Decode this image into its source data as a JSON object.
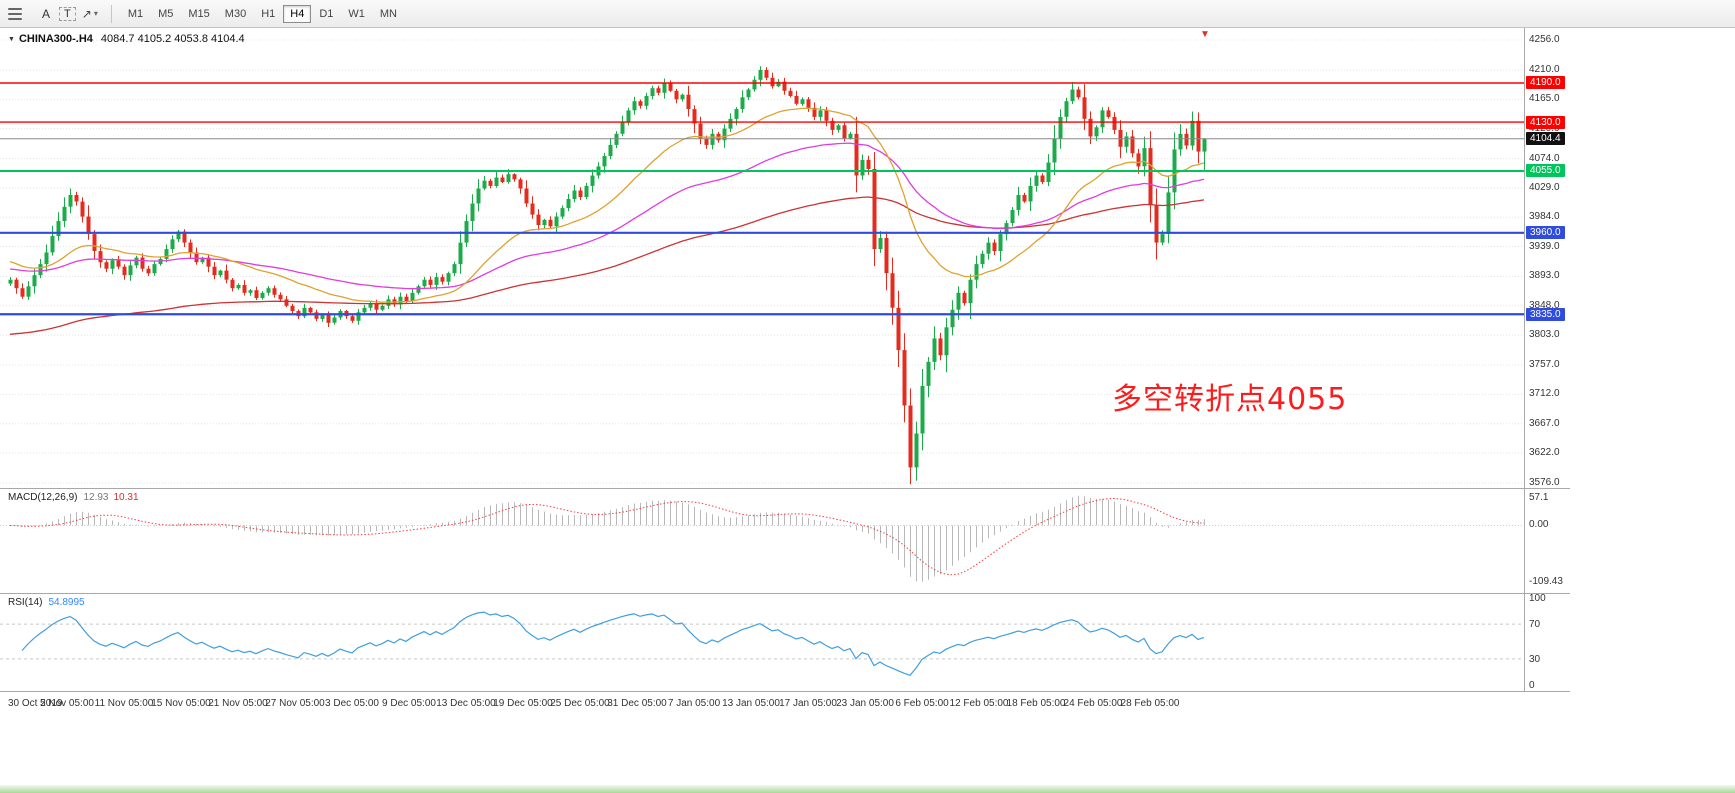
{
  "colors": {
    "bull": "#1cab4a",
    "bear": "#e52b1d",
    "grid": "#e3e3e3",
    "macd_hist": "#b8b8b8",
    "macd_signal": "#fb3b3b",
    "rsi_line": "#3f9fdf",
    "current_price_bg": "#111111",
    "current_price_line": "#888888"
  },
  "toolbar": {
    "tools": [
      {
        "label": "A"
      },
      {
        "label": "T"
      }
    ],
    "icons": {
      "cursor": "↗",
      "caret": "▾"
    },
    "timeframes": [
      "M1",
      "M5",
      "M15",
      "M30",
      "H1",
      "H4",
      "D1",
      "W1",
      "MN"
    ],
    "active_timeframe": "H4"
  },
  "chart": {
    "dropdown_glyph": "▼",
    "symbol_title": "CHINA300-.H4",
    "ohlc_text": "4084.7 4105.2 4053.8 4104.4",
    "shift_marker_glyph": "▼"
  },
  "annotation": {
    "text": "多空转折点4055",
    "color": "#fb1d1d"
  },
  "chart_data": {
    "type": "candlestick",
    "symbol": "CHINA300-",
    "timeframe": "H4",
    "current_ohlc": {
      "open": 4084.7,
      "high": 4105.2,
      "low": 4053.8,
      "close": 4104.4
    },
    "closes": [
      3888,
      3875,
      3862,
      3878,
      3895,
      3912,
      3930,
      3955,
      3978,
      4000,
      4018,
      4008,
      3985,
      3958,
      3932,
      3915,
      3905,
      3918,
      3908,
      3895,
      3910,
      3922,
      3905,
      3898,
      3912,
      3920,
      3935,
      3950,
      3962,
      3945,
      3930,
      3915,
      3922,
      3908,
      3895,
      3902,
      3888,
      3875,
      3880,
      3868,
      3872,
      3860,
      3868,
      3875,
      3865,
      3858,
      3848,
      3840,
      3832,
      3845,
      3838,
      3828,
      3835,
      3822,
      3830,
      3840,
      3832,
      3825,
      3838,
      3845,
      3852,
      3842,
      3848,
      3858,
      3850,
      3862,
      3855,
      3868,
      3878,
      3888,
      3880,
      3892,
      3885,
      3898,
      3912,
      3945,
      3978,
      4005,
      4028,
      4040,
      4032,
      4045,
      4038,
      4050,
      4042,
      4028,
      4005,
      3988,
      3972,
      3980,
      3970,
      3985,
      3998,
      4012,
      4025,
      4015,
      4032,
      4048,
      4062,
      4078,
      4095,
      4112,
      4130,
      4148,
      4162,
      4155,
      4170,
      4182,
      4175,
      4190,
      4178,
      4165,
      4172,
      4150,
      4128,
      4105,
      4095,
      4112,
      4102,
      4120,
      4135,
      4150,
      4168,
      4180,
      4195,
      4210,
      4198,
      4185,
      4192,
      4178,
      4170,
      4158,
      4165,
      4152,
      4138,
      4148,
      4132,
      4118,
      4125,
      4105,
      4112,
      4048,
      4072,
      4058,
      3935,
      3952,
      3898,
      3845,
      3780,
      3695,
      3600,
      3652,
      3725,
      3762,
      3798,
      3772,
      3815,
      3842,
      3868,
      3852,
      3888,
      3912,
      3928,
      3945,
      3932,
      3958,
      3975,
      3995,
      4018,
      4008,
      4032,
      4048,
      4038,
      4068,
      4105,
      4138,
      4162,
      4180,
      4168,
      4135,
      4108,
      4122,
      4148,
      4138,
      4118,
      4092,
      4108,
      4082,
      4062,
      4090,
      4002,
      3945,
      3958,
      4022,
      4088,
      4112,
      4094,
      4132,
      4084.7,
      4104.4
    ],
    "moving_averages": [
      {
        "name": "ma-slow",
        "period": 140,
        "seed": 3803,
        "color": "#cc3333"
      },
      {
        "name": "ma-mid",
        "period": 62,
        "seed": 3905,
        "color": "#e03ce0"
      },
      {
        "name": "ma-fast",
        "period": 26,
        "seed": 3918,
        "color": "#dfa22e"
      }
    ],
    "levels": [
      {
        "price": 4190.0,
        "color": "#fe0000",
        "width": 1.4,
        "type": "resistance"
      },
      {
        "price": 4130.0,
        "color": "#fe0000",
        "width": 1.4,
        "type": "resistance"
      },
      {
        "price": 4055.0,
        "color": "#00c45c",
        "width": 2.0,
        "type": "pivot"
      },
      {
        "price": 3960.0,
        "color": "#2f4cdd",
        "width": 2.2,
        "type": "support"
      },
      {
        "price": 3835.0,
        "color": "#2f4cdd",
        "width": 2.2,
        "type": "support"
      }
    ],
    "price_ticks": [
      4256.0,
      4210.0,
      4165.0,
      4120.0,
      4074.0,
      4029.0,
      3984.0,
      3939.0,
      3893.0,
      3848.0,
      3803.0,
      3757.0,
      3712.0,
      3667.0,
      3622.0,
      3576.0
    ],
    "time_labels": [
      "30 Oct 2019",
      "5 Nov 05:00",
      "11 Nov 05:00",
      "15 Nov 05:00",
      "21 Nov 05:00",
      "27 Nov 05:00",
      "3 Dec 05:00",
      "9 Dec 05:00",
      "13 Dec 05:00",
      "19 Dec 05:00",
      "25 Dec 05:00",
      "31 Dec 05:00",
      "7 Jan 05:00",
      "13 Jan 05:00",
      "17 Jan 05:00",
      "23 Jan 05:00",
      "6 Feb 05:00",
      "12 Feb 05:00",
      "18 Feb 05:00",
      "24 Feb 05:00",
      "28 Feb 05:00"
    ],
    "macd": {
      "label": "MACD(12,26,9)",
      "value_macd": "12.93",
      "value_signal": "10.31",
      "axis": [
        "57.1",
        "0.00",
        "-109.43"
      ],
      "params": [
        12,
        26,
        9
      ]
    },
    "rsi": {
      "label": "RSI(14)",
      "value": "54.8995",
      "axis": [
        "100",
        "70",
        "30",
        "0"
      ],
      "levels": [
        70,
        30
      ],
      "period": 14
    }
  }
}
